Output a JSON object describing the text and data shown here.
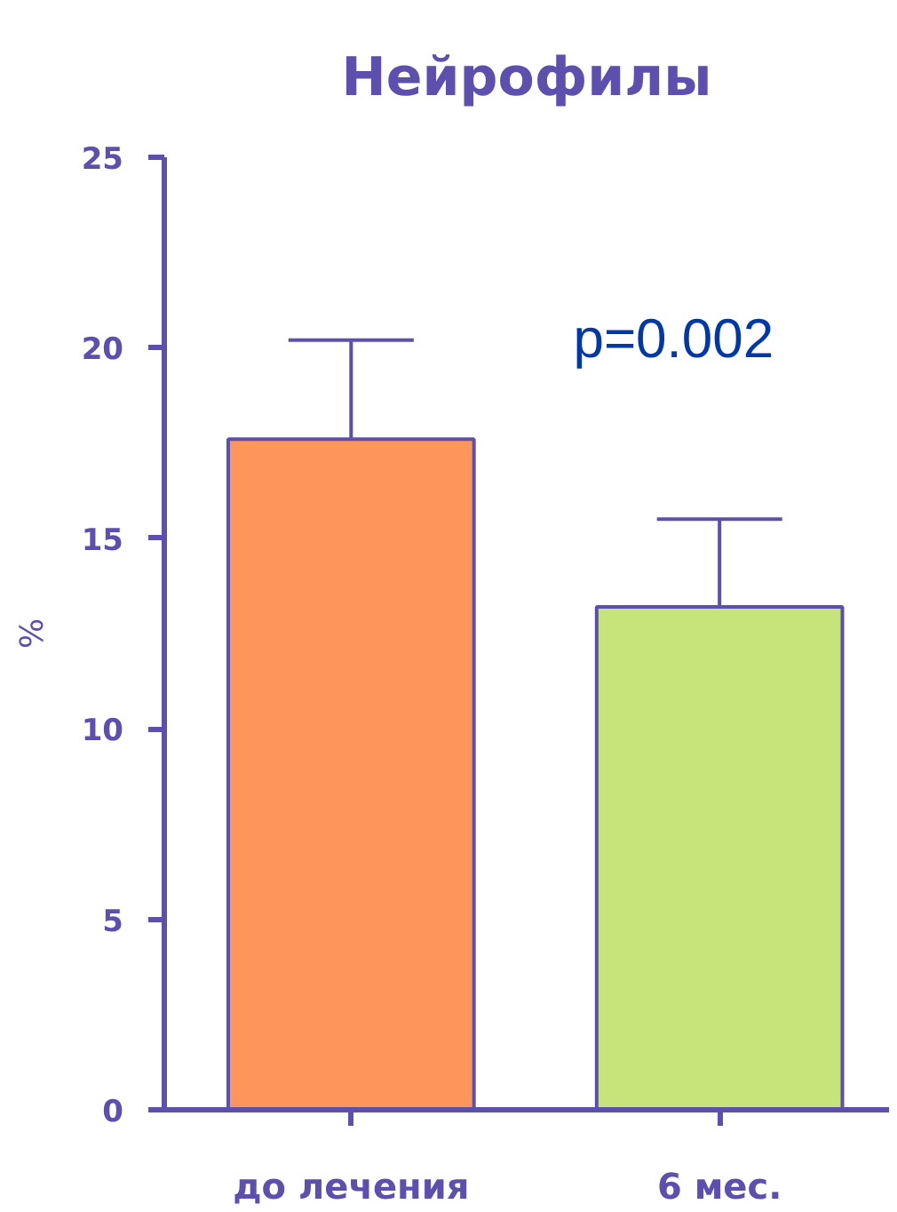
{
  "chart_data": {
    "type": "bar",
    "title": "Нейрофилы",
    "ylabel": "%",
    "categories": [
      "до лечения",
      "6 мес."
    ],
    "values": [
      17.6,
      13.2
    ],
    "colors": [
      "#fe955a",
      "#c6e47a"
    ],
    "errors": [
      [
        17.6,
        20.2
      ],
      [
        13.2,
        15.5
      ]
    ],
    "ylim": [
      0,
      25
    ],
    "yticks": [
      0,
      5,
      10,
      15,
      20,
      25
    ],
    "annotations": [
      "p=0.002"
    ]
  }
}
